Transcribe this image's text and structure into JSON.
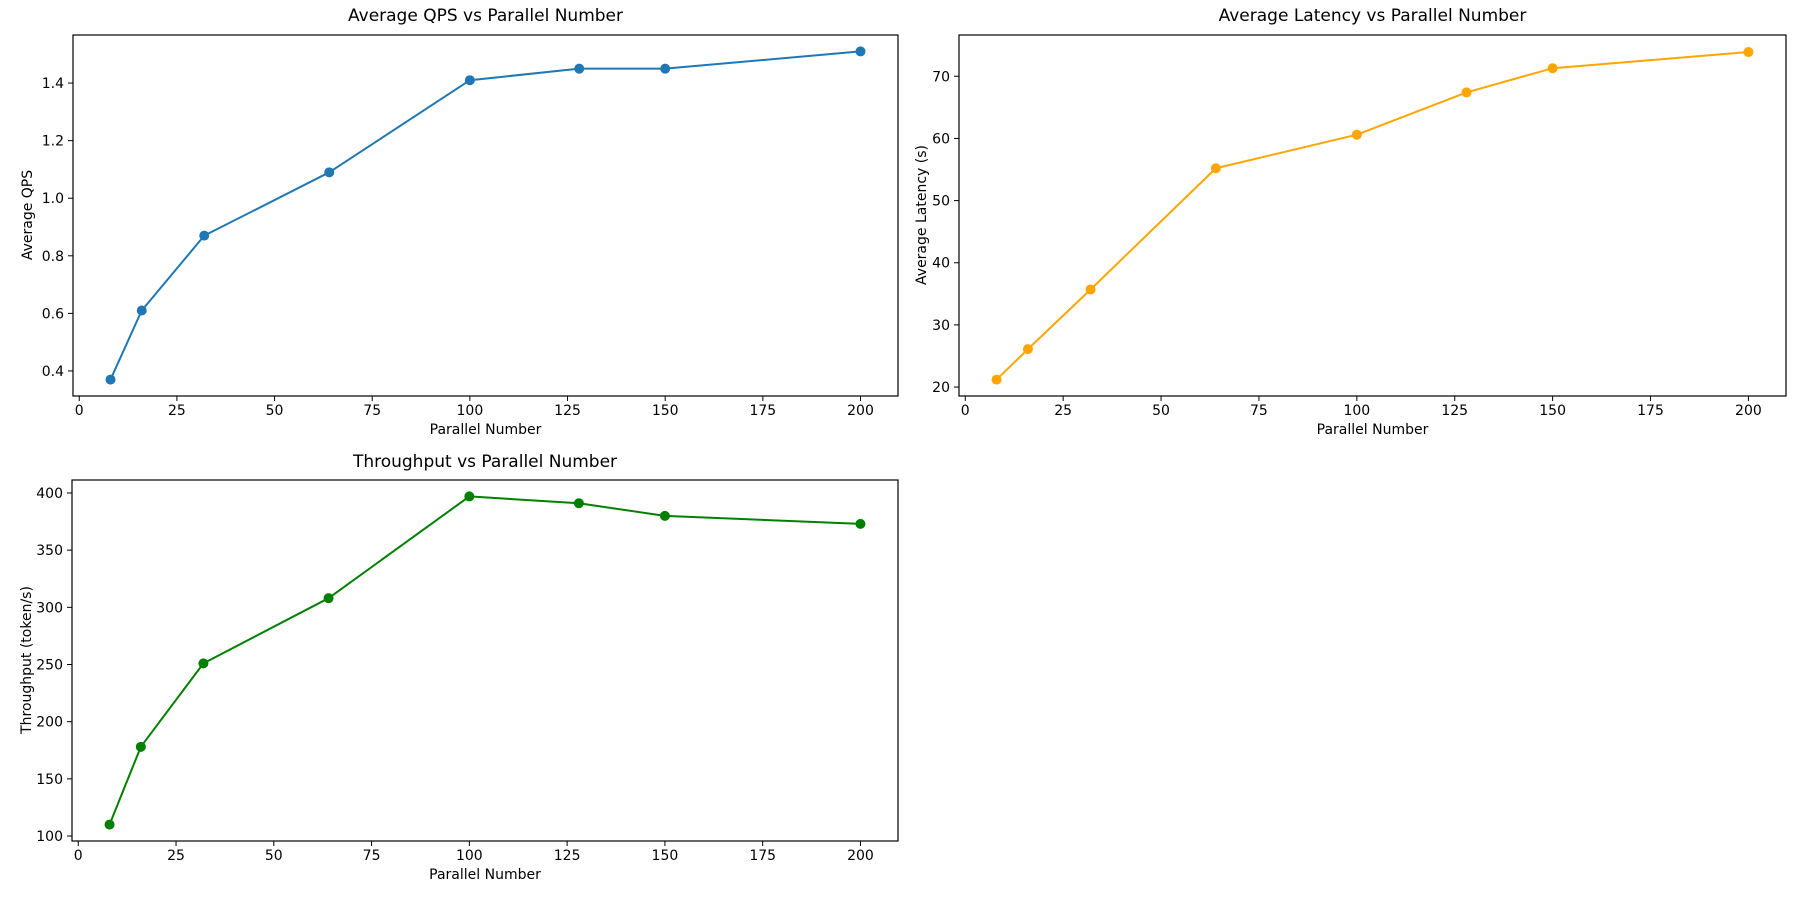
{
  "figure": {
    "background": "#ffffff",
    "text_color": "#000000",
    "spine_color": "#000000"
  },
  "chart_data": [
    {
      "type": "line",
      "title": "Average QPS vs Parallel Number",
      "xlabel": "Parallel Number",
      "ylabel": "Average QPS",
      "grid": false,
      "legend": "none",
      "xlim": [
        -1.6,
        209.6
      ],
      "ylim": [
        0.313,
        1.567
      ],
      "xticks": [
        0,
        25,
        50,
        75,
        100,
        125,
        150,
        175,
        200
      ],
      "xtick_labels": [
        "0",
        "25",
        "50",
        "75",
        "100",
        "125",
        "150",
        "175",
        "200"
      ],
      "yticks": [
        0.4,
        0.6,
        0.8,
        1.0,
        1.2,
        1.4
      ],
      "ytick_labels": [
        "0.4",
        "0.6",
        "0.8",
        "1.0",
        "1.2",
        "1.4"
      ],
      "series": [
        {
          "name": "Average QPS",
          "color": "#1f77b4",
          "marker": "circle",
          "x": [
            8,
            16,
            32,
            64,
            100,
            128,
            150,
            200
          ],
          "y": [
            0.37,
            0.61,
            0.87,
            1.09,
            1.41,
            1.45,
            1.45,
            1.51
          ]
        }
      ]
    },
    {
      "type": "line",
      "title": "Average Latency vs Parallel Number",
      "xlabel": "Parallel Number",
      "ylabel": "Average Latency (s)",
      "grid": false,
      "legend": "none",
      "xlim": [
        -1.6,
        209.6
      ],
      "ylim": [
        18.56,
        76.64
      ],
      "xticks": [
        0,
        25,
        50,
        75,
        100,
        125,
        150,
        175,
        200
      ],
      "xtick_labels": [
        "0",
        "25",
        "50",
        "75",
        "100",
        "125",
        "150",
        "175",
        "200"
      ],
      "yticks": [
        20,
        30,
        40,
        50,
        60,
        70
      ],
      "ytick_labels": [
        "20",
        "30",
        "40",
        "50",
        "60",
        "70"
      ],
      "series": [
        {
          "name": "Average Latency (s)",
          "color": "#ffa500",
          "marker": "circle",
          "x": [
            8,
            16,
            32,
            64,
            100,
            128,
            150,
            200
          ],
          "y": [
            21.2,
            26.1,
            35.7,
            55.2,
            60.6,
            67.4,
            71.3,
            73.9
          ]
        }
      ]
    },
    {
      "type": "line",
      "title": "Throughput vs Parallel Number",
      "xlabel": "Parallel Number",
      "ylabel": "Throughput (token/s)",
      "grid": false,
      "legend": "none",
      "xlim": [
        -1.6,
        209.6
      ],
      "ylim": [
        95.65,
        411.35
      ],
      "xticks": [
        0,
        25,
        50,
        75,
        100,
        125,
        150,
        175,
        200
      ],
      "xtick_labels": [
        "0",
        "25",
        "50",
        "75",
        "100",
        "125",
        "150",
        "175",
        "200"
      ],
      "yticks": [
        100,
        150,
        200,
        250,
        300,
        350,
        400
      ],
      "ytick_labels": [
        "100",
        "150",
        "200",
        "250",
        "300",
        "350",
        "400"
      ],
      "series": [
        {
          "name": "Throughput (token/s)",
          "color": "#008000",
          "marker": "circle",
          "x": [
            8,
            16,
            32,
            64,
            100,
            128,
            150,
            200
          ],
          "y": [
            110,
            178,
            251,
            308,
            397,
            391,
            380,
            373
          ]
        }
      ]
    }
  ]
}
